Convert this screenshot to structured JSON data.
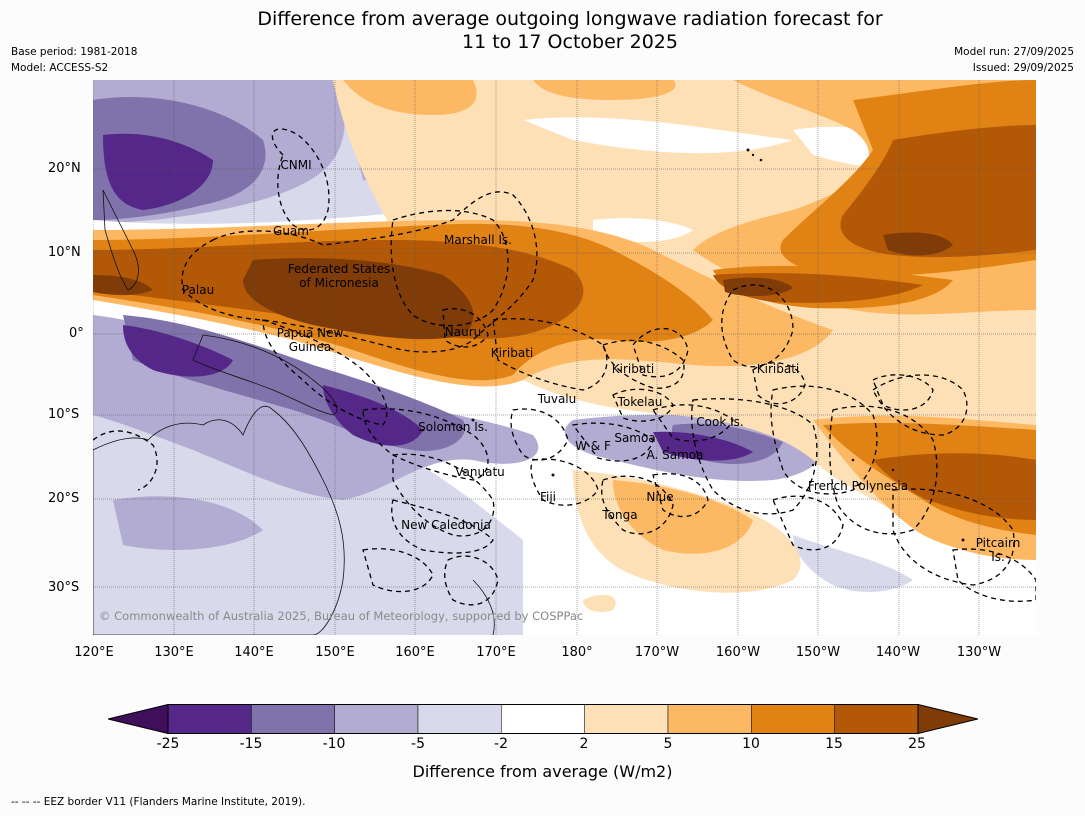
{
  "title": {
    "line1": "Difference from average outgoing longwave radiation forecast for",
    "line2": "11 to 17 October 2025"
  },
  "meta": {
    "base_period": "Base period: 1981-2018",
    "model": "Model: ACCESS-S2",
    "model_run": "Model run: 27/09/2025",
    "issued": "Issued: 29/09/2025"
  },
  "axes": {
    "lat_labels": [
      "20°N",
      "10°N",
      "0°",
      "10°S",
      "20°S",
      "30°S"
    ],
    "lon_labels": [
      "120°E",
      "130°E",
      "140°E",
      "150°E",
      "160°E",
      "170°E",
      "180°",
      "170°W",
      "160°W",
      "150°W",
      "140°W",
      "130°W"
    ]
  },
  "regions": {
    "cnmi": "CNMI",
    "guam": "Guam",
    "marshall": "Marshall Is.",
    "fsm1": "Federated States",
    "fsm2": "of Micronesia",
    "palau": "Palau",
    "png1": "Papua New",
    "png2": "Guinea",
    "nauru": "Nauru",
    "kiribati1": "Kiribati",
    "kiribati2": "Kiribati",
    "kiribati3": "Kiribati",
    "tuvalu": "Tuvalu",
    "tokelau": "Tokelau",
    "cook": "Cook Is.",
    "solomon": "Solomon Is.",
    "wf": "W & F",
    "samoa": "Samoa",
    "asamoa": "A. Samoa",
    "vanuatu": "Vanuatu",
    "fiji": "Fiji",
    "niue": "Niue",
    "tonga": "Tonga",
    "newcal": "New Caledonia",
    "frenchpoly": "French Polynesia",
    "pitcairn1": "Pitcairn",
    "pitcairn2": "Is."
  },
  "copyright": "© Commonwealth of Australia 2025, Bureau of Meteorology, supported by COSPPac",
  "colorbar": {
    "label": "Difference from average (W/m2)",
    "ticks": [
      "-25",
      "-15",
      "-10",
      "-5",
      "-2",
      "2",
      "5",
      "10",
      "15",
      "25"
    ],
    "colors": [
      "#3f0f5c",
      "#542788",
      "#8073ac",
      "#b2abd2",
      "#d8daeb",
      "#ffffff",
      "#fee0b6",
      "#fdb863",
      "#e08214",
      "#b35806",
      "#7f3b08"
    ]
  },
  "footnote": "--  --  -- EEZ border V11 (Flanders Marine Institute, 2019)."
}
